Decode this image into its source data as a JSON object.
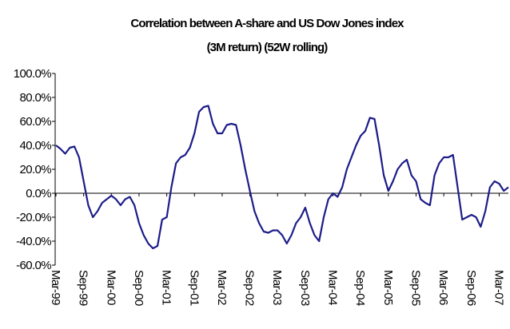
{
  "chart_data": {
    "type": "line",
    "title": "Correlation between A-share and US Dow Jones index",
    "subtitle": "(3M return) (52W rolling)",
    "categories": [
      "Mar-99",
      null,
      null,
      null,
      null,
      null,
      "Sep-99",
      null,
      null,
      null,
      null,
      null,
      "Mar-00",
      null,
      null,
      null,
      null,
      null,
      "Sep-00",
      null,
      null,
      null,
      null,
      null,
      "Mar-01",
      null,
      null,
      null,
      null,
      null,
      "Sep-01",
      null,
      null,
      null,
      null,
      null,
      "Mar-02",
      null,
      null,
      null,
      null,
      null,
      "Sep-02",
      null,
      null,
      null,
      null,
      null,
      "Mar-03",
      null,
      null,
      null,
      null,
      null,
      "Sep-03",
      null,
      null,
      null,
      null,
      null,
      "Mar-04",
      null,
      null,
      null,
      null,
      null,
      "Sep-04",
      null,
      null,
      null,
      null,
      null,
      "Mar-05",
      null,
      null,
      null,
      null,
      null,
      "Sep-05",
      null,
      null,
      null,
      null,
      null,
      "Mar-06",
      null,
      null,
      null,
      null,
      null,
      "Sep-06",
      null,
      null,
      null,
      null,
      null,
      "Mar-07",
      null,
      null
    ],
    "values": [
      40,
      37,
      33,
      38,
      39,
      30,
      10,
      -10,
      -20,
      -15,
      -8,
      -5,
      -2,
      -5,
      -10,
      -5,
      -3,
      -10,
      -25,
      -35,
      -42,
      -46,
      -44,
      -22,
      -20,
      5,
      25,
      30,
      32,
      38,
      50,
      68,
      72,
      73,
      58,
      50,
      50,
      57,
      58,
      57,
      40,
      20,
      2,
      -15,
      -25,
      -32,
      -33,
      -31,
      -31,
      -35,
      -42,
      -35,
      -25,
      -20,
      -12,
      -25,
      -35,
      -40,
      -20,
      -5,
      0,
      -3,
      5,
      20,
      30,
      40,
      48,
      52,
      63,
      62,
      40,
      15,
      2,
      10,
      20,
      25,
      28,
      15,
      10,
      -5,
      -8,
      -10,
      15,
      25,
      30,
      30,
      32,
      5,
      -22,
      -20,
      -18,
      -20,
      -28,
      -15,
      5,
      10,
      8,
      2,
      5
    ],
    "color": "#1c1c8a",
    "ylim": [
      -60,
      100
    ],
    "yticks": [
      {
        "value": -60,
        "label": "-60.0%"
      },
      {
        "value": -40,
        "label": "-40.0%"
      },
      {
        "value": -20,
        "label": "-20.0%"
      },
      {
        "value": 0,
        "label": "0.0%"
      },
      {
        "value": 20,
        "label": "20.0%"
      },
      {
        "value": 40,
        "label": "40.0%"
      },
      {
        "value": 60,
        "label": "60.0%"
      },
      {
        "value": 80,
        "label": "80.0%"
      },
      {
        "value": 100,
        "label": "100.0%"
      }
    ]
  }
}
